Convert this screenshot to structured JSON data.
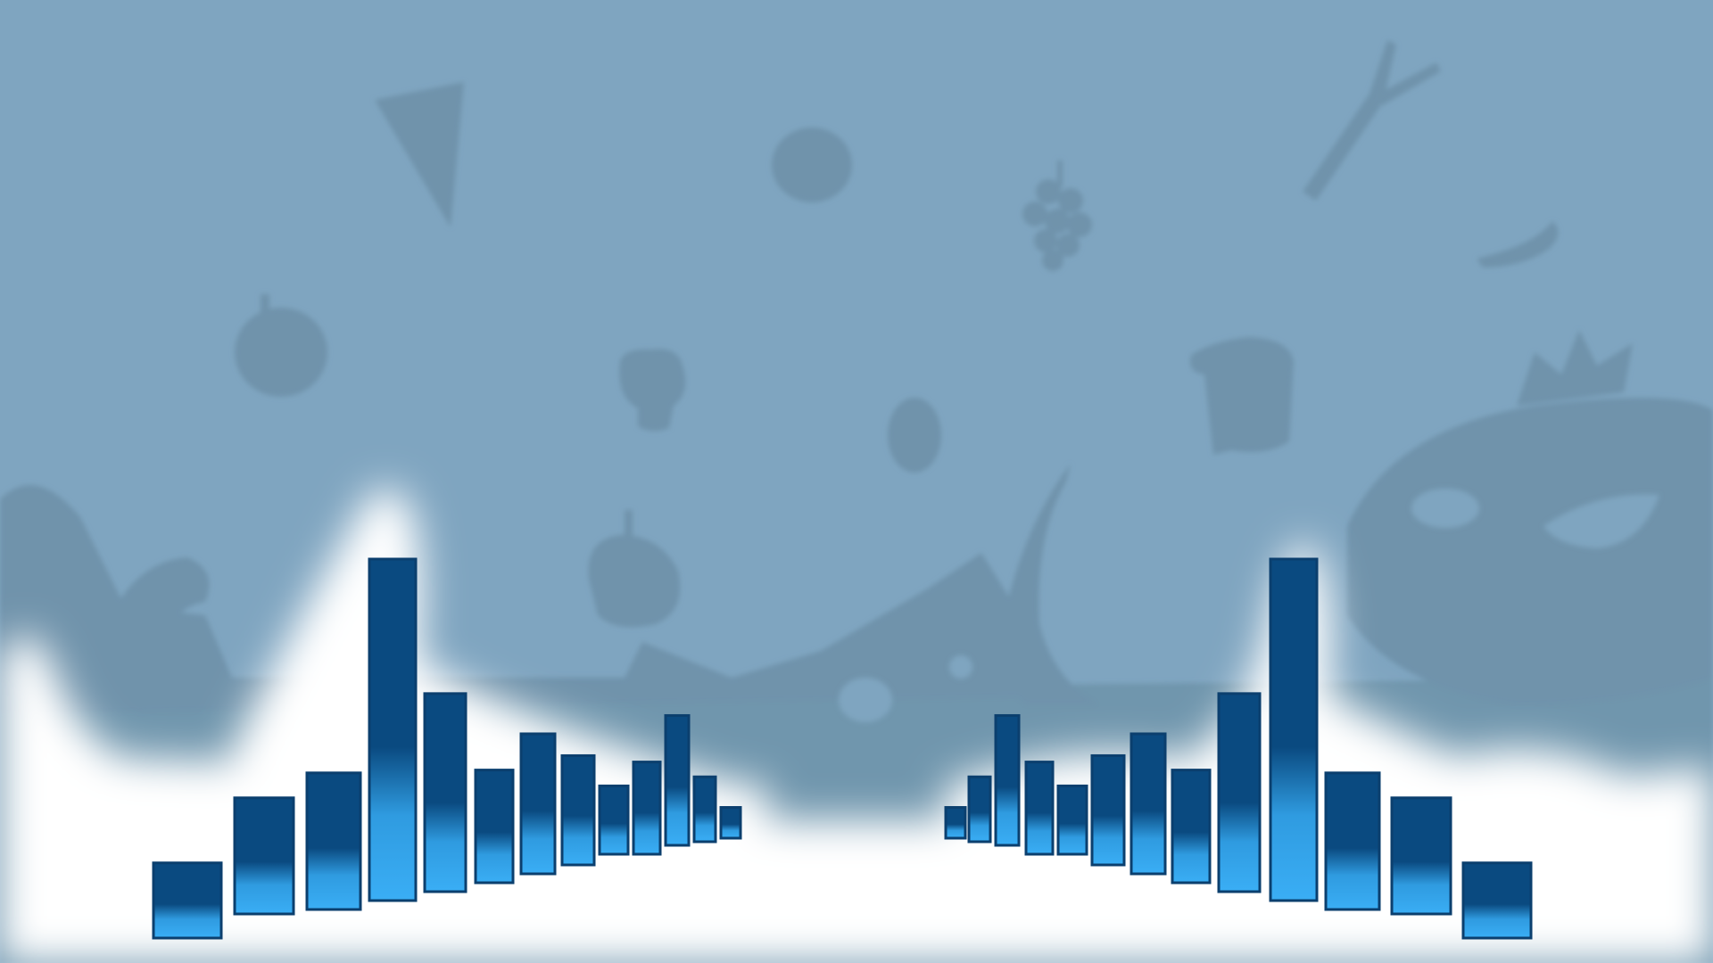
{
  "colors": {
    "background": "#7fa5c0",
    "silhouette": "#6f93ab",
    "glow": "#ffffff",
    "bar_top": "#0a4a80",
    "bar_bottom": "#35a9f0",
    "bar_edge": "#0b3f6e"
  },
  "decorations": [
    "pizza-slice-icon",
    "tomato-icon",
    "grapes-icon",
    "leek-icon",
    "chili-pepper-icon",
    "apple-icon",
    "broccoli-icon",
    "egg-icon",
    "bread-icon",
    "bell-pepper-icon",
    "cheese-icon",
    "banana-icon",
    "fish-icon",
    "croissant-icon"
  ],
  "visualizer": {
    "left_bars": [
      0.22,
      0.34,
      0.4,
      1.0,
      0.58,
      0.33,
      0.41,
      0.32,
      0.2,
      0.27,
      0.38,
      0.19,
      0.09
    ],
    "right_bars": [
      0.09,
      0.19,
      0.38,
      0.27,
      0.2,
      0.32,
      0.41,
      0.33,
      0.58,
      1.0,
      0.4,
      0.34,
      0.22
    ]
  }
}
